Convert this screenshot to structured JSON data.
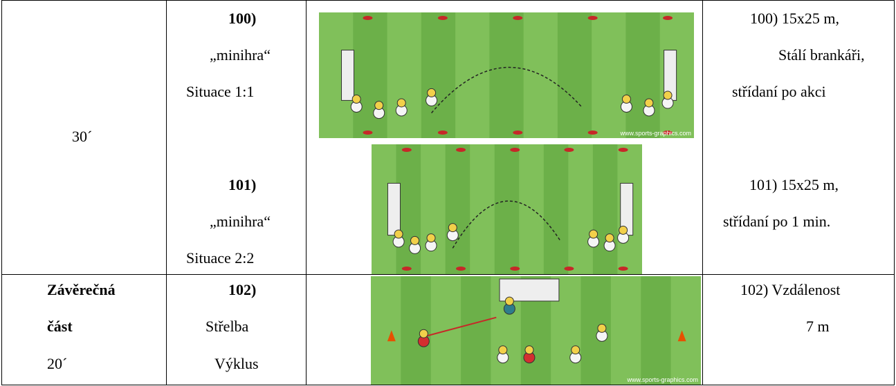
{
  "table": {
    "rows": [
      {
        "time": [
          "30´"
        ],
        "exercises": [
          "100)",
          "„minihra“",
          "Situace 1:1",
          "101)",
          "„minihra“",
          "Situace 2:2"
        ],
        "notes": [
          "100) 15x25 m,",
          "Stálí brankáři,",
          "střídaní po akci",
          "101) 15x25 m,",
          "střídaní po 1 min."
        ]
      },
      {
        "time": [
          "Závěrečná",
          "část",
          "20´"
        ],
        "exercises": [
          "102)",
          "Střelba",
          "Výklus"
        ],
        "notes": [
          "102) Vzdálenost",
          "7 m"
        ]
      }
    ],
    "images": [
      {
        "credit": "www.sports-graphics.com"
      },
      {
        "credit": null
      },
      {
        "credit": "www.sports-graphics.com"
      }
    ]
  }
}
